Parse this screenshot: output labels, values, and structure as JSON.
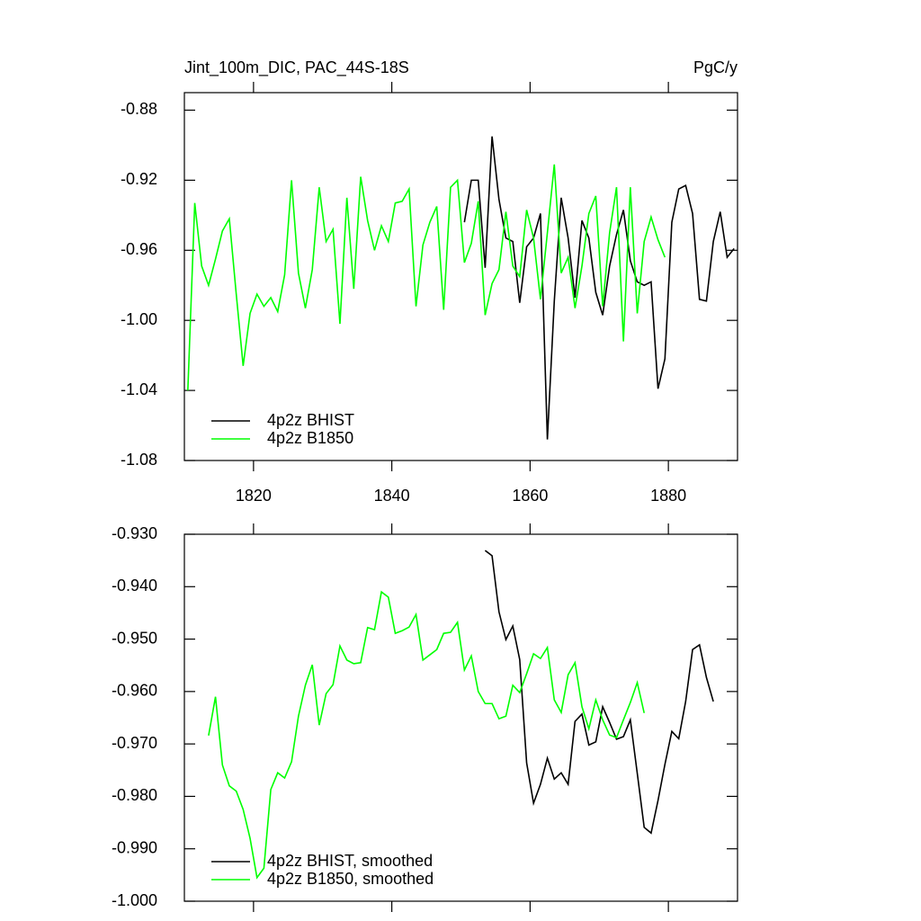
{
  "chart_data": [
    {
      "type": "line",
      "title": "Jint_100m_DIC, PAC_44S-18S",
      "units": "PgC/y",
      "x": [
        1810.5,
        1811.5,
        1812.5,
        1813.5,
        1814.5,
        1815.5,
        1816.5,
        1817.5,
        1818.5,
        1819.5,
        1820.5,
        1821.5,
        1822.5,
        1823.5,
        1824.5,
        1825.5,
        1826.5,
        1827.5,
        1828.5,
        1829.5,
        1830.5,
        1831.5,
        1832.5,
        1833.5,
        1834.5,
        1835.5,
        1836.5,
        1837.5,
        1838.5,
        1839.5,
        1840.5,
        1841.5,
        1842.5,
        1843.5,
        1844.5,
        1845.5,
        1846.5,
        1847.5,
        1848.5,
        1849.5,
        1850.5,
        1851.5,
        1852.5,
        1853.5,
        1854.5,
        1855.5,
        1856.5,
        1857.5,
        1858.5,
        1859.5,
        1860.5,
        1861.5,
        1862.5,
        1863.5,
        1864.5,
        1865.5,
        1866.5,
        1867.5,
        1868.5,
        1869.5,
        1870.5,
        1871.5,
        1872.5,
        1873.5,
        1874.5,
        1875.5,
        1876.5,
        1877.5,
        1878.5,
        1879.5,
        1880.5,
        1881.5,
        1882.5,
        1883.5,
        1884.5,
        1885.5,
        1886.5,
        1887.5,
        1888.5,
        1889.5
      ],
      "series": [
        {
          "name": "4p2z BHIST",
          "color": "#000000",
          "values": [
            null,
            null,
            null,
            null,
            null,
            null,
            null,
            null,
            null,
            null,
            null,
            null,
            null,
            null,
            null,
            null,
            null,
            null,
            null,
            null,
            null,
            null,
            null,
            null,
            null,
            null,
            null,
            null,
            null,
            null,
            null,
            null,
            null,
            null,
            null,
            null,
            null,
            null,
            null,
            null,
            -0.944,
            -0.92,
            -0.92,
            -0.97,
            -0.895,
            -0.931,
            -0.953,
            -0.955,
            -0.99,
            -0.958,
            -0.953,
            -0.939,
            -1.068,
            -0.989,
            -0.93,
            -0.953,
            -0.987,
            -0.943,
            -0.953,
            -0.984,
            -0.997,
            -0.969,
            -0.951,
            -0.937,
            -0.966,
            -0.978,
            -0.98,
            -0.978,
            -1.039,
            -1.022,
            -0.944,
            -0.925,
            -0.923,
            -0.939,
            -0.988,
            -0.989,
            -0.955,
            -0.938,
            -0.964,
            -0.959
          ]
        },
        {
          "name": "4p2z B1850",
          "color": "#00ff00",
          "values": [
            -1.04,
            -0.933,
            -0.969,
            -0.98,
            -0.965,
            -0.949,
            -0.942,
            -0.985,
            -1.026,
            -0.996,
            -0.985,
            -0.992,
            -0.987,
            -0.995,
            -0.974,
            -0.92,
            -0.973,
            -0.993,
            -0.971,
            -0.924,
            -0.955,
            -0.948,
            -1.002,
            -0.93,
            -0.982,
            -0.918,
            -0.943,
            -0.96,
            -0.946,
            -0.955,
            -0.933,
            -0.932,
            -0.925,
            -0.992,
            -0.957,
            -0.944,
            -0.935,
            -0.994,
            -0.924,
            -0.92,
            -0.967,
            -0.956,
            -0.932,
            -0.997,
            -0.979,
            -0.971,
            -0.938,
            -0.969,
            -0.975,
            -0.937,
            -0.953,
            -0.988,
            -0.95,
            -0.911,
            -0.973,
            -0.964,
            -0.993,
            -0.969,
            -0.939,
            -0.929,
            -0.992,
            -0.95,
            -0.924,
            -1.012,
            -0.924,
            -0.996,
            -0.955,
            -0.941,
            -0.954,
            -0.964,
            null,
            null,
            null,
            null,
            null,
            null,
            null,
            null,
            null,
            null
          ]
        }
      ],
      "xlim": [
        1810,
        1890
      ],
      "xticks": [
        1820,
        1840,
        1860,
        1880
      ],
      "ylim": [
        -1.08,
        -0.87
      ],
      "yticks": [
        -0.88,
        -0.92,
        -0.96,
        {
          "value": -1,
          "label": "-1.00"
        },
        -1.04,
        -1.08
      ],
      "legend": "lower left"
    },
    {
      "type": "line",
      "x": [
        1810.5,
        1811.5,
        1812.5,
        1813.5,
        1814.5,
        1815.5,
        1816.5,
        1817.5,
        1818.5,
        1819.5,
        1820.5,
        1821.5,
        1822.5,
        1823.5,
        1824.5,
        1825.5,
        1826.5,
        1827.5,
        1828.5,
        1829.5,
        1830.5,
        1831.5,
        1832.5,
        1833.5,
        1834.5,
        1835.5,
        1836.5,
        1837.5,
        1838.5,
        1839.5,
        1840.5,
        1841.5,
        1842.5,
        1843.5,
        1844.5,
        1845.5,
        1846.5,
        1847.5,
        1848.5,
        1849.5,
        1850.5,
        1851.5,
        1852.5,
        1853.5,
        1854.5,
        1855.5,
        1856.5,
        1857.5,
        1858.5,
        1859.5,
        1860.5,
        1861.5,
        1862.5,
        1863.5,
        1864.5,
        1865.5,
        1866.5,
        1867.5,
        1868.5,
        1869.5,
        1870.5,
        1871.5,
        1872.5,
        1873.5,
        1874.5,
        1875.5,
        1876.5,
        1877.5,
        1878.5,
        1879.5,
        1880.5,
        1881.5,
        1882.5,
        1883.5,
        1884.5,
        1885.5,
        1886.5,
        1887.5,
        1888.5,
        1889.5
      ],
      "series": [
        {
          "name": "4p2z BHIST, smoothed",
          "color": "#000000",
          "values": [
            null,
            null,
            null,
            null,
            null,
            null,
            null,
            null,
            null,
            null,
            null,
            null,
            null,
            null,
            null,
            null,
            null,
            null,
            null,
            null,
            null,
            null,
            null,
            null,
            null,
            null,
            null,
            null,
            null,
            null,
            null,
            null,
            null,
            null,
            null,
            null,
            null,
            null,
            null,
            null,
            null,
            null,
            null,
            -0.9331,
            -0.9341,
            -0.9448,
            -0.9501,
            -0.9475,
            -0.9539,
            -0.9736,
            -0.9813,
            -0.9777,
            -0.9727,
            -0.9767,
            -0.9755,
            -0.9777,
            -0.9657,
            -0.9643,
            -0.9702,
            -0.9696,
            -0.9629,
            -0.9659,
            -0.9691,
            -0.9686,
            -0.9654,
            -0.9756,
            -0.9859,
            -0.987,
            -0.9808,
            -0.9739,
            -0.9676,
            -0.969,
            -0.9619,
            -0.952,
            -0.9511,
            -0.9573,
            -0.9619,
            null,
            null,
            null
          ]
        },
        {
          "name": "4p2z B1850, smoothed",
          "color": "#00ff00",
          "values": [
            null,
            null,
            null,
            -0.9684,
            -0.961,
            -0.974,
            -0.978,
            -0.979,
            -0.9825,
            -0.988,
            -0.9955,
            -0.9937,
            -0.9787,
            -0.9755,
            -0.9765,
            -0.9734,
            -0.9647,
            -0.9588,
            -0.9549,
            -0.9664,
            -0.9604,
            -0.9587,
            -0.9513,
            -0.954,
            -0.9547,
            -0.9545,
            -0.9478,
            -0.9482,
            -0.941,
            -0.942,
            -0.9489,
            -0.9484,
            -0.9477,
            -0.9453,
            -0.954,
            -0.953,
            -0.952,
            -0.9489,
            -0.9487,
            -0.9468,
            -0.9559,
            -0.9532,
            -0.96,
            -0.9623,
            -0.9623,
            -0.9652,
            -0.9647,
            -0.9588,
            -0.9602,
            -0.9566,
            -0.9528,
            -0.9537,
            -0.9516,
            -0.9616,
            -0.964,
            -0.9568,
            -0.9545,
            -0.9629,
            -0.9671,
            -0.9616,
            -0.9654,
            -0.9683,
            -0.9688,
            -0.9654,
            -0.9621,
            -0.9583,
            -0.9641,
            null,
            null,
            null,
            null,
            null,
            null,
            null,
            null,
            null,
            null,
            null,
            null,
            null
          ]
        }
      ],
      "xlim": [
        1810,
        1890
      ],
      "xticks": [
        1820,
        1840,
        1860,
        1880
      ],
      "xtick_labels": false,
      "ylim": [
        -1,
        -0.93
      ],
      "yticks": [
        {
          "value": -0.93,
          "label": "-0.930"
        },
        {
          "value": -0.94,
          "label": "-0.940"
        },
        {
          "value": -0.95,
          "label": "-0.950"
        },
        {
          "value": -0.96,
          "label": "-0.960"
        },
        {
          "value": -0.97,
          "label": "-0.970"
        },
        {
          "value": -0.98,
          "label": "-0.980"
        },
        {
          "value": -0.99,
          "label": "-0.990"
        },
        {
          "value": -1,
          "label": "-1.000"
        }
      ],
      "legend": "lower left"
    }
  ]
}
